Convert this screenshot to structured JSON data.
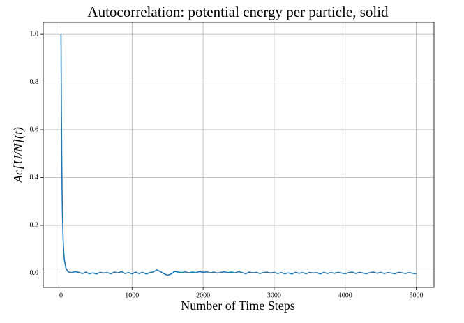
{
  "chart_data": {
    "type": "line",
    "title": "Autocorrelation: potential energy per particle, solid",
    "xlabel": "Number of Time Steps",
    "ylabel": "Ac[U/N](t)",
    "x": [
      0,
      5,
      10,
      15,
      20,
      30,
      40,
      50,
      70,
      100,
      150,
      200,
      250,
      300,
      350,
      400,
      450,
      500,
      550,
      600,
      650,
      700,
      750,
      800,
      850,
      900,
      950,
      1000,
      1050,
      1100,
      1150,
      1200,
      1250,
      1300,
      1350,
      1400,
      1450,
      1500,
      1550,
      1600,
      1650,
      1700,
      1750,
      1800,
      1850,
      1900,
      1950,
      2000,
      2050,
      2100,
      2150,
      2200,
      2250,
      2300,
      2350,
      2400,
      2450,
      2500,
      2550,
      2600,
      2650,
      2700,
      2750,
      2800,
      2850,
      2900,
      2950,
      3000,
      3050,
      3100,
      3150,
      3200,
      3250,
      3300,
      3350,
      3400,
      3450,
      3500,
      3550,
      3600,
      3650,
      3700,
      3750,
      3800,
      3850,
      3900,
      3950,
      4000,
      4050,
      4100,
      4150,
      4200,
      4250,
      4300,
      4350,
      4400,
      4450,
      4500,
      4550,
      4600,
      4650,
      4700,
      4750,
      4800,
      4850,
      4900,
      4950,
      5000
    ],
    "series": [
      {
        "name": "autocorrelation",
        "color": "#1f77b4",
        "values": [
          1.0,
          0.7,
          0.5,
          0.35,
          0.25,
          0.14,
          0.08,
          0.05,
          0.02,
          0.005,
          0.002,
          0.006,
          0.003,
          -0.002,
          0.004,
          -0.003,
          0.001,
          -0.004,
          0.003,
          0.0,
          0.002,
          -0.003,
          0.004,
          0.001,
          0.006,
          -0.002,
          0.002,
          -0.003,
          0.004,
          -0.002,
          0.003,
          -0.004,
          0.002,
          0.005,
          0.013,
          0.006,
          -0.003,
          -0.009,
          -0.004,
          0.007,
          0.004,
          0.002,
          0.005,
          0.001,
          0.004,
          0.002,
          0.006,
          0.003,
          0.005,
          0.001,
          0.004,
          0.0,
          0.003,
          0.005,
          0.002,
          0.004,
          0.001,
          0.006,
          0.002,
          -0.003,
          0.004,
          0.001,
          0.003,
          -0.002,
          0.002,
          0.004,
          0.0,
          0.003,
          -0.002,
          0.002,
          -0.003,
          0.001,
          -0.004,
          0.003,
          -0.001,
          0.002,
          -0.003,
          0.003,
          0.0,
          0.002,
          -0.004,
          0.003,
          -0.002,
          0.002,
          -0.001,
          0.003,
          0.0,
          -0.003,
          0.002,
          0.004,
          -0.002,
          0.003,
          0.0,
          -0.003,
          0.002,
          0.004,
          -0.001,
          0.003,
          -0.002,
          0.002,
          0.0,
          -0.003,
          0.003,
          0.001,
          -0.002,
          0.002,
          -0.001,
          -0.003
        ]
      }
    ],
    "xlim": [
      -250,
      5250
    ],
    "ylim": [
      -0.06,
      1.05
    ],
    "xticks": [
      0,
      1000,
      2000,
      3000,
      4000,
      5000
    ],
    "yticks": [
      {
        "value": 0,
        "label": "0.0"
      },
      {
        "value": 0.2,
        "label": "0.2"
      },
      {
        "value": 0.4,
        "label": "0.4"
      },
      {
        "value": 0.6,
        "label": "0.6"
      },
      {
        "value": 0.8,
        "label": "0.8"
      },
      {
        "value": 1,
        "label": "1.0"
      }
    ],
    "grid": true
  }
}
